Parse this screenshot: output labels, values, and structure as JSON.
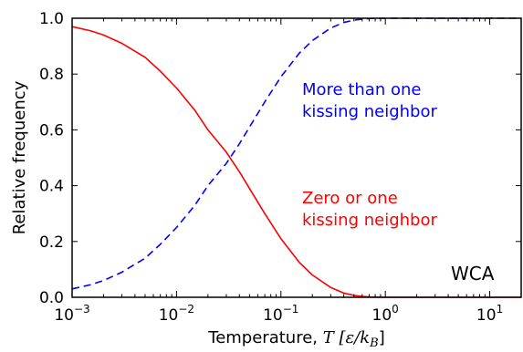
{
  "chart_data": {
    "type": "line",
    "xscale": "log",
    "xlim": [
      0.001,
      20
    ],
    "ylim": [
      0.0,
      1.0
    ],
    "xlabel_text": "Temperature, ",
    "xlabel_math": "T [ε/k",
    "xlabel_sub": "B",
    "xlabel_close": "]",
    "ylabel": "Relative frequency",
    "annotation": "WCA",
    "x_ticks": [
      {
        "value": 0.001,
        "base": "10",
        "exp": "−3"
      },
      {
        "value": 0.01,
        "base": "10",
        "exp": "−2"
      },
      {
        "value": 0.1,
        "base": "10",
        "exp": "−1"
      },
      {
        "value": 1,
        "base": "10",
        "exp": "0"
      },
      {
        "value": 10,
        "base": "10",
        "exp": "1"
      }
    ],
    "y_ticks": [
      {
        "value": 0.0,
        "label": "0.0"
      },
      {
        "value": 0.2,
        "label": "0.2"
      },
      {
        "value": 0.4,
        "label": "0.4"
      },
      {
        "value": 0.6,
        "label": "0.6"
      },
      {
        "value": 0.8,
        "label": "0.8"
      },
      {
        "value": 1.0,
        "label": "1.0"
      }
    ],
    "series": [
      {
        "key": "zero-or-one",
        "line1": "Zero or one",
        "line2": "kissing neighbor",
        "color": "#ff0000",
        "style": "solid",
        "x": [
          0.001,
          0.0015,
          0.002,
          0.003,
          0.005,
          0.007,
          0.01,
          0.015,
          0.02,
          0.03,
          0.04,
          0.05,
          0.07,
          0.1,
          0.15,
          0.2,
          0.3,
          0.4,
          0.5,
          0.6,
          0.7,
          1.0,
          20
        ],
        "y": [
          0.97,
          0.955,
          0.94,
          0.91,
          0.86,
          0.81,
          0.75,
          0.67,
          0.6,
          0.52,
          0.45,
          0.39,
          0.3,
          0.21,
          0.125,
          0.08,
          0.035,
          0.015,
          0.007,
          0.003,
          0.001,
          0.0,
          0.0
        ]
      },
      {
        "key": "more-than-one",
        "line1": "More than one",
        "line2": "kissing neighbor",
        "color": "#0000ff",
        "style": "dashed",
        "x": [
          0.001,
          0.0015,
          0.002,
          0.003,
          0.005,
          0.007,
          0.01,
          0.015,
          0.02,
          0.03,
          0.04,
          0.05,
          0.07,
          0.1,
          0.15,
          0.2,
          0.3,
          0.4,
          0.5,
          0.6,
          0.7,
          1.0,
          20
        ],
        "y": [
          0.03,
          0.045,
          0.06,
          0.09,
          0.14,
          0.19,
          0.25,
          0.33,
          0.4,
          0.48,
          0.55,
          0.61,
          0.7,
          0.79,
          0.875,
          0.92,
          0.965,
          0.985,
          0.993,
          0.997,
          0.999,
          1.0,
          1.0
        ]
      }
    ]
  }
}
